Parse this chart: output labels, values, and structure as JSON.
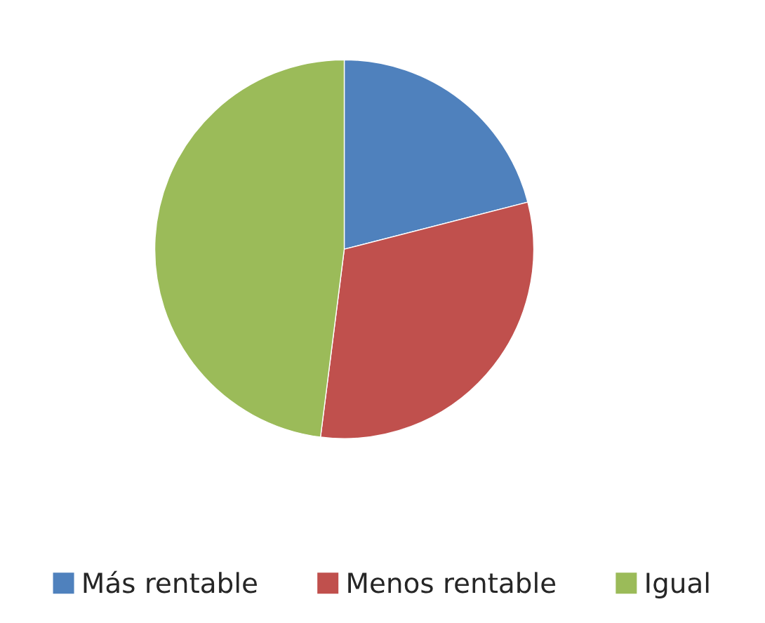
{
  "chart_data": {
    "type": "pie",
    "categories": [
      "Más rentable",
      "Menos rentable",
      "Igual"
    ],
    "values": [
      21,
      31,
      48
    ],
    "colors": [
      "#4f81bd",
      "#c0504d",
      "#9bbb59"
    ],
    "legend": "bottom"
  }
}
